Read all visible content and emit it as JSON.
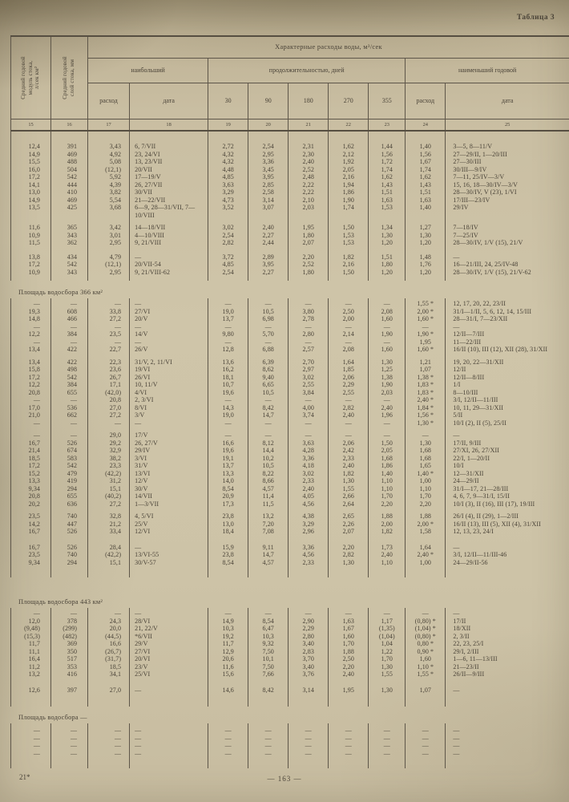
{
  "page": {
    "table_label": "Таблица 3",
    "footer_left": "21*",
    "footer_center": "—  163  —"
  },
  "header": {
    "col15_label": "Средний годовой\nмодуль стока,\nл/сек км²",
    "col16_label": "Средний годовой\nслой стока, мм",
    "group_title": "Характерные расходы воды, м³/сек",
    "group_max": "наибольший",
    "group_duration": "продолжительностью, дней",
    "group_min": "наименьший годовой",
    "sub_discharge": "расход",
    "sub_date": "дата",
    "duration_cols": [
      "30",
      "90",
      "180",
      "270",
      "355"
    ],
    "col_numbers": [
      "15",
      "16",
      "17",
      "18",
      "19",
      "20",
      "21",
      "22",
      "23",
      "24",
      "25"
    ]
  },
  "table": {
    "sections": [
      {
        "title": "",
        "groups": [
          [
            [
              "12,4",
              "391",
              "3,43",
              "6, 7/VII",
              "2,72",
              "2,54",
              "2,31",
              "1,62",
              "1,44",
              "1,40",
              "3—5, 8—11/V"
            ],
            [
              "14,9",
              "469",
              "4,92",
              "23, 24/VI",
              "4,32",
              "2,95",
              "2,30",
              "2,12",
              "1,56",
              "1,56",
              "27—29/II, 1—20/III"
            ],
            [
              "15,5",
              "488",
              "5,08",
              "13, 23/VII",
              "4,32",
              "3,36",
              "2,40",
              "1,92",
              "1,72",
              "1,67",
              "27—30/III"
            ],
            [
              "16,0",
              "504",
              "(12,1)",
              "20/VII",
              "4,48",
              "3,45",
              "2,52",
              "2,05",
              "1,74",
              "1,74",
              "30/III—9/IV"
            ],
            [
              "17,2",
              "542",
              "5,92",
              "17—19/V",
              "4,85",
              "3,95",
              "2,48",
              "2,16",
              "1,62",
              "1,62",
              "7—11, 25/IV—3/V"
            ],
            [
              "14,1",
              "444",
              "4,39",
              "26, 27/VII",
              "3,63",
              "2,85",
              "2,22",
              "1,94",
              "1,43",
              "1,43",
              "15, 16, 18—30/IV—3/V"
            ],
            [
              "13,0",
              "410",
              "3,82",
              "30/VII",
              "3,29",
              "2,58",
              "2,22",
              "1,86",
              "1,51",
              "1,51",
              "28—30/IV, V (23), 1/VI"
            ],
            [
              "14,9",
              "469",
              "5,54",
              "21—22/VII",
              "4,73",
              "3,14",
              "2,10",
              "1,90",
              "1,63",
              "1,63",
              "17/III—23/IV"
            ],
            [
              "13,5",
              "425",
              "3,68",
              "6—9,  28—31/VII, 7—10/VIII",
              "3,52",
              "3,07",
              "2,03",
              "1,74",
              "1,53",
              "1,40",
              "29/IV"
            ]
          ],
          [
            [
              "11,6",
              "365",
              "3,42",
              "14—18/VII",
              "3,02",
              "2,40",
              "1,95",
              "1,50",
              "1,34",
              "1,27",
              "7—18/IV"
            ],
            [
              "10,9",
              "343",
              "3,01",
              "4—10/VIII",
              "2,54",
              "2,27",
              "1,80",
              "1,53",
              "1,30",
              "1,30",
              "7—25/IV"
            ],
            [
              "11,5",
              "362",
              "2,95",
              "9, 21/VIII",
              "2,82",
              "2,44",
              "2,07",
              "1,53",
              "1,20",
              "1,20",
              "28—30/IV,  1/V (15),  21/V"
            ]
          ],
          [
            [
              "13,8",
              "434",
              "4,79",
              "—",
              "3,72",
              "2,89",
              "2,20",
              "1,82",
              "1,51",
              "1,48",
              "—"
            ],
            [
              "17,2",
              "542",
              "(12,1)",
              "20/VII-54",
              "4,85",
              "3,95",
              "2,52",
              "2,16",
              "1,80",
              "1,76",
              "16—21/III, 24, 25/IV-48"
            ],
            [
              "10,9",
              "343",
              "2,95",
              "9, 21/VIII-62",
              "2,54",
              "2,27",
              "1,80",
              "1,50",
              "1,20",
              "1,20",
              "28—30/IV,  1/V (15),  21/V-62"
            ]
          ]
        ]
      },
      {
        "title": "Площадь водосбора 366 км²",
        "groups": [
          [
            [
              "—",
              "—",
              "—",
              "—",
              "—",
              "—",
              "—",
              "—",
              "—",
              "1,55 *",
              "12, 17, 20, 22, 23/II"
            ],
            [
              "19,3",
              "608",
              "33,8",
              "27/VI",
              "19,0",
              "10,5",
              "3,80",
              "2,50",
              "2,08",
              "2,00 *",
              "31/I—1/II, 5, 6, 12, 14, 15/III"
            ],
            [
              "14,8",
              "466",
              "27,2",
              "20/V",
              "13,7",
              "6,98",
              "2,78",
              "2,00",
              "1,60",
              "1,60 *",
              "28—31/I, 7—23/XII"
            ],
            [
              "—",
              "—",
              "—",
              "—",
              "—",
              "—",
              "—",
              "—",
              "—",
              "—",
              "—"
            ],
            [
              "12,2",
              "384",
              "23,5",
              "14/V",
              "9,80",
              "5,70",
              "2,80",
              "2,14",
              "1,90",
              "1,90 *",
              "12/II—7/III"
            ],
            [
              "—",
              "—",
              "—",
              "—",
              "—",
              "—",
              "—",
              "—",
              "—",
              "1,95",
              "11—22/III"
            ],
            [
              "13,4",
              "422",
              "22,7",
              "26/V",
              "12,8",
              "6,88",
              "2,57",
              "2,08",
              "1,60",
              "1,60 *",
              "16/II (10), III (12), XII (28), 31/XII"
            ]
          ],
          [
            [
              "13,4",
              "422",
              "22,3",
              "31/V, 2, 11/VI",
              "13,6",
              "6,39",
              "2,70",
              "1,64",
              "1,30",
              "1,21",
              "19, 20, 22—31/XII"
            ],
            [
              "15,8",
              "498",
              "23,6",
              "19/VI",
              "16,2",
              "8,62",
              "2,97",
              "1,85",
              "1,25",
              "1,07",
              "12/II"
            ],
            [
              "17,2",
              "542",
              "26,7",
              "26/VI",
              "18,1",
              "9,40",
              "3,02",
              "2,06",
              "1,38",
              "1,38 *",
              "12/II—8/III"
            ],
            [
              "12,2",
              "384",
              "17,1",
              "10, 11/V",
              "10,7",
              "6,65",
              "2,55",
              "2,29",
              "1,90",
              "1,83 *",
              "1/I"
            ],
            [
              "20,8",
              "655",
              "(42,0)",
              "4/VI",
              "19,6",
              "10,5",
              "3,84",
              "2,55",
              "2,03",
              "1,83 *",
              "8—10/III"
            ],
            [
              "—",
              "—",
              "20,8",
              "2, 3/VI",
              "—",
              "—",
              "—",
              "—",
              "—",
              "2,40 *",
              "3/I, 12/II—11/III"
            ],
            [
              "17,0",
              "536",
              "27,0",
              "8/VI",
              "14,3",
              "8,42",
              "4,00",
              "2,82",
              "2,40",
              "1,84 *",
              "10, 11, 29—31/XII"
            ],
            [
              "21,0",
              "662",
              "27,2",
              "3/V",
              "19,0",
              "14,7",
              "3,74",
              "2,40",
              "1,96",
              "1,56 *",
              "5/II"
            ],
            [
              "—",
              "—",
              "—",
              "—",
              "—",
              "—",
              "—",
              "—",
              "—",
              "1,30 *",
              "10/I (2), II (5), 25/II"
            ]
          ],
          [
            [
              "—",
              "—",
              "29,0",
              "17/V",
              "—",
              "—",
              "—",
              "—",
              "—",
              "—",
              "—"
            ],
            [
              "16,7",
              "526",
              "29,2",
              "26, 27/V",
              "16,6",
              "8,12",
              "3,63",
              "2,06",
              "1,50",
              "1,30",
              "17/II, 9/III"
            ],
            [
              "21,4",
              "674",
              "32,9",
              "29/IV",
              "19,6",
              "14,4",
              "4,28",
              "2,42",
              "2,05",
              "1,68",
              "27/XI, 26, 27/XII"
            ],
            [
              "18,5",
              "583",
              "38,2",
              "3/VI",
              "19,1",
              "10,2",
              "3,36",
              "2,33",
              "1,68",
              "1,68",
              "22/I, 1—20/II"
            ],
            [
              "17,2",
              "542",
              "23,3",
              "31/V",
              "13,7",
              "10,5",
              "4,18",
              "2,40",
              "1,86",
              "1,65",
              "10/I"
            ],
            [
              "15,2",
              "479",
              "(42,2)",
              "13/VI",
              "13,3",
              "8,22",
              "3,02",
              "1,82",
              "1,40",
              "1,40 *",
              "12—31/XII"
            ],
            [
              "13,3",
              "419",
              "31,2",
              "12/V",
              "14,0",
              "8,66",
              "2,33",
              "1,30",
              "1,10",
              "1,00",
              "24—29/II"
            ],
            [
              "9,34",
              "294",
              "15,1",
              "30/V",
              "8,54",
              "4,57",
              "2,40",
              "1,55",
              "1,10",
              "1,10",
              "31/I—17, 21—28/III"
            ],
            [
              "20,8",
              "655",
              "(40,2)",
              "14/VII",
              "20,9",
              "11,4",
              "4,05",
              "2,66",
              "1,70",
              "1,70",
              "4, 6, 7, 9—31/I, 15/II"
            ],
            [
              "20,2",
              "636",
              "27,2",
              "1—3/VII",
              "17,3",
              "11,5",
              "4,56",
              "2,64",
              "2,20",
              "2,20",
              "10/I (3),  II (16),  III (17), 19/III"
            ]
          ],
          [
            [
              "23,5",
              "740",
              "32,8",
              "4, 5/VI",
              "23,8",
              "13,2",
              "4,38",
              "2,65",
              "1,88",
              "1,88",
              "26/I (4),  II (29),  1—2/III"
            ],
            [
              "14,2",
              "447",
              "21,2",
              "25/V",
              "13,0",
              "7,20",
              "3,29",
              "2,26",
              "2,00",
              "2,00 *",
              "16/II (13),  III (5),  XII (4), 31/XII"
            ],
            [
              "16,7",
              "526",
              "33,4",
              "12/VI",
              "18,4",
              "7,08",
              "2,96",
              "2,07",
              "1,82",
              "1,58",
              "12, 13, 23, 24/I"
            ]
          ],
          [
            [
              "16,7",
              "526",
              "28,4",
              "—",
              "15,9",
              "9,11",
              "3,36",
              "2,20",
              "1,73",
              "1,64",
              "—"
            ],
            [
              "23,5",
              "740",
              "(42,2)",
              "13/VI-55",
              "23,8",
              "14,7",
              "4,56",
              "2,82",
              "2,40",
              "2,40 *",
              "3/I, 12/II—11/III-46"
            ],
            [
              "9,34",
              "294",
              "15,1",
              "30/V-57",
              "8,54",
              "4,57",
              "2,33",
              "1,30",
              "1,10",
              "1,00",
              "24—29/II-56"
            ]
          ]
        ]
      },
      {
        "title": "Площадь водосбора 443 км²",
        "groups": [
          [
            [
              "—",
              "—",
              "—",
              "—",
              "—",
              "—",
              "—",
              "—",
              "—",
              "—",
              "—"
            ],
            [
              "12,0",
              "378",
              "24,3",
              "28/VI",
              "14,9",
              "8,54",
              "2,90",
              "1,63",
              "1,17",
              "(0,80) *",
              "17/II"
            ],
            [
              "(9,48)",
              "(299)",
              "20,0",
              "21, 22/V",
              "10,3",
              "6,47",
              "2,29",
              "1,67",
              "(1,35)",
              "(1,04) *",
              "18/XII"
            ],
            [
              "(15,3)",
              "(482)",
              "(44,5)",
              "*6/VII",
              "19,2",
              "10,3",
              "2,80",
              "1,60",
              "(1,04)",
              "(0,80) *",
              "2, 3/II"
            ],
            [
              "11,7",
              "369",
              "16,6",
              "29/V",
              "11,7",
              "9,32",
              "3,40",
              "1,70",
              "1,04",
              "0,80 *",
              "22, 23, 25/I"
            ],
            [
              "11,1",
              "350",
              "(26,7)",
              "27/VI",
              "12,9",
              "7,50",
              "2,83",
              "1,88",
              "1,22",
              "0,90 *",
              "29/I, 2/III"
            ],
            [
              "16,4",
              "517",
              "(31,7)",
              "20/VI",
              "20,6",
              "10,1",
              "3,70",
              "2,50",
              "1,70",
              "1,60",
              "1—6, 11—13/III"
            ],
            [
              "11,2",
              "353",
              "18,5",
              "23/V",
              "11,6",
              "7,50",
              "3,40",
              "2,20",
              "1,30",
              "1,10 *",
              "21—23/II"
            ],
            [
              "13,2",
              "416",
              "34,1",
              "25/VI",
              "15,6",
              "7,66",
              "3,76",
              "2,40",
              "1,55",
              "1,55 *",
              "26/II—9/III"
            ]
          ],
          [
            [
              "12,6",
              "397",
              "27,0",
              "—",
              "14,6",
              "8,42",
              "3,14",
              "1,95",
              "1,30",
              "1,07",
              "—"
            ]
          ]
        ]
      },
      {
        "title": "Площадь водосбора —",
        "groups": [
          [
            [
              "—",
              "—",
              "—",
              "—",
              "—",
              "—",
              "—",
              "—",
              "—",
              "—",
              "—"
            ],
            [
              "—",
              "—",
              "—",
              "—",
              "—",
              "—",
              "—",
              "—",
              "—",
              "—",
              "—"
            ],
            [
              "—",
              "—",
              "—",
              "—",
              "—",
              "—",
              "—",
              "—",
              "—",
              "—",
              "—"
            ],
            [
              "—",
              "—",
              "—",
              "—",
              "—",
              "—",
              "—",
              "—",
              "—",
              "—",
              "—"
            ]
          ]
        ]
      }
    ]
  }
}
